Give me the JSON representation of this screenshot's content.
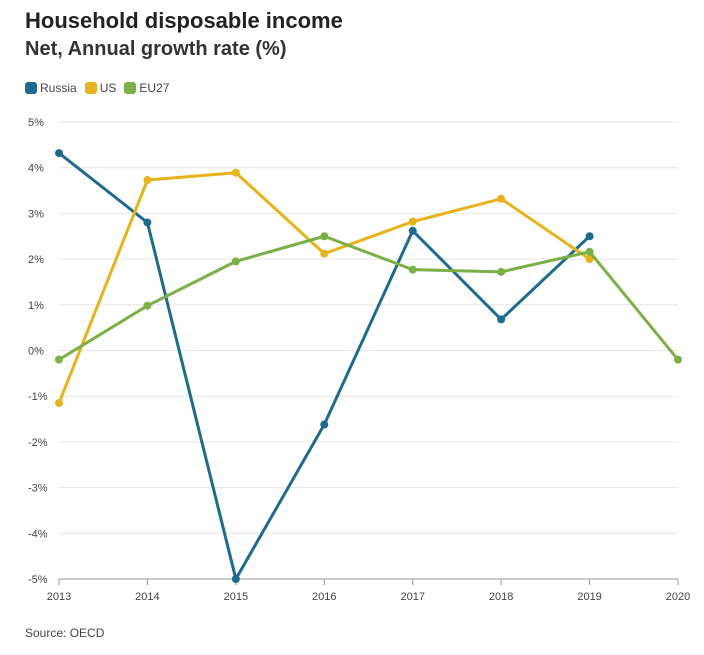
{
  "chart_data": {
    "type": "line",
    "title": "Household disposable income",
    "subtitle": "Net, Annual growth rate (%)",
    "x": [
      "2013",
      "2014",
      "2015",
      "2016",
      "2017",
      "2018",
      "2019",
      "2020"
    ],
    "ylim": [
      -5,
      5
    ],
    "yticks": [
      5,
      4,
      3,
      2,
      1,
      0,
      -1,
      -2,
      -3,
      -4,
      -5
    ],
    "ytick_labels": [
      "5%",
      "4%",
      "3%",
      "2%",
      "1%",
      "0%",
      "-1%",
      "-2%",
      "-3%",
      "-4%",
      "-5%"
    ],
    "grid": true,
    "legend_position": "top-left",
    "series": [
      {
        "name": "Russia",
        "color": "#1f6a8f",
        "values": [
          4.32,
          2.8,
          -5.0,
          -1.62,
          2.62,
          0.68,
          2.5,
          null
        ]
      },
      {
        "name": "US",
        "color": "#e8b21b",
        "values": [
          -1.15,
          3.73,
          3.89,
          2.12,
          2.82,
          3.32,
          2.0,
          null
        ]
      },
      {
        "name": "EU27",
        "color": "#7bb046",
        "values": [
          -0.2,
          0.98,
          1.95,
          2.5,
          1.77,
          1.72,
          2.16,
          -0.2
        ]
      }
    ],
    "source": "Source: OECD"
  }
}
